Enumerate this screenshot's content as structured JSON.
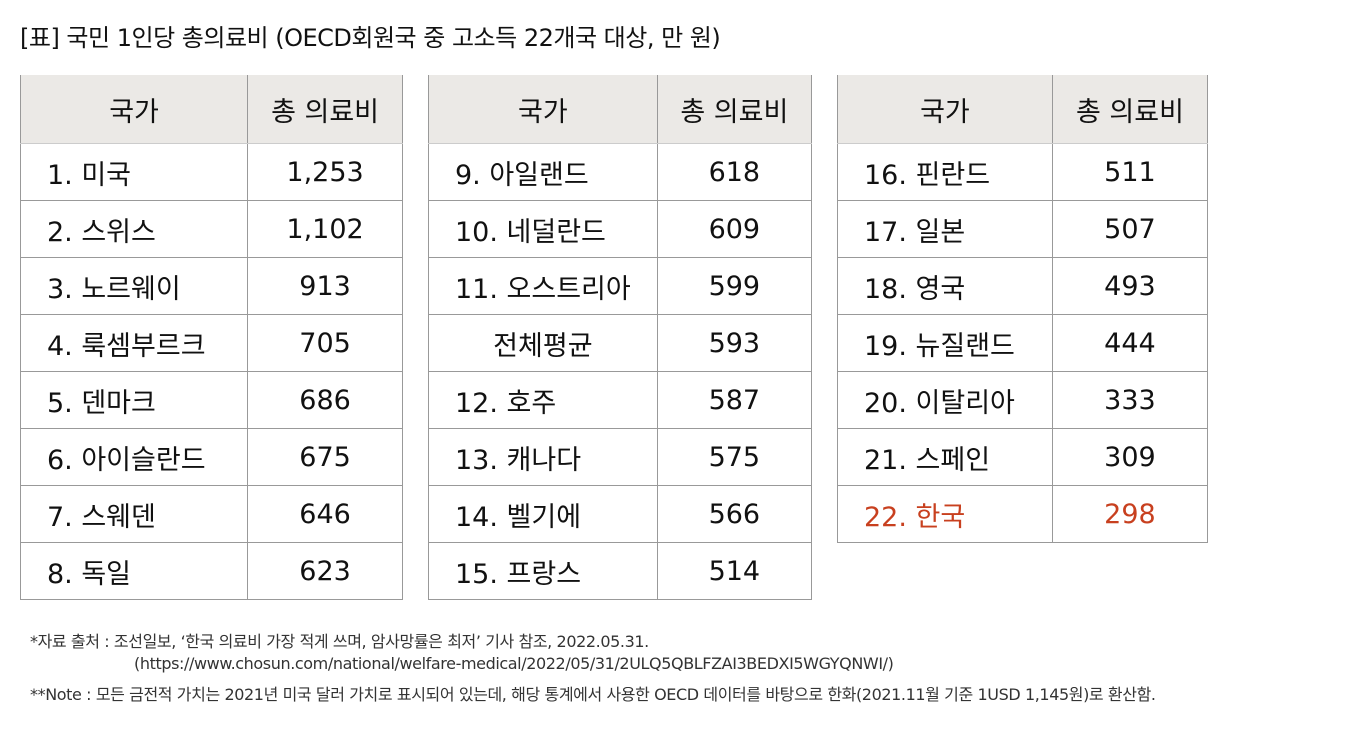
{
  "title": "[표] 국민 1인당 총의료비 (OECD회원국 중 고소득 22개국 대상, 만 원)",
  "headers": [
    "국가",
    "총 의료비"
  ],
  "highlight_color": "#c8401f",
  "tables": [
    [
      [
        "1. 미국",
        "1,253"
      ],
      [
        "2. 스위스",
        "1,102"
      ],
      [
        "3. 노르웨이",
        "913"
      ],
      [
        "4. 룩셈부르크",
        "705"
      ],
      [
        "5. 덴마크",
        "686"
      ],
      [
        "6. 아이슬란드",
        "675"
      ],
      [
        "7. 스웨덴",
        "646"
      ],
      [
        "8. 독일",
        "623"
      ]
    ],
    [
      [
        "9. 아일랜드",
        "618"
      ],
      [
        "10. 네덜란드",
        "609"
      ],
      [
        "11. 오스트리아",
        "599"
      ],
      [
        "전체평균",
        "593"
      ],
      [
        "12. 호주",
        "587"
      ],
      [
        "13. 캐나다",
        "575"
      ],
      [
        "14. 벨기에",
        "566"
      ],
      [
        "15. 프랑스",
        "514"
      ]
    ],
    [
      [
        "16. 핀란드",
        "511"
      ],
      [
        "17. 일본",
        "507"
      ],
      [
        "18. 영국",
        "493"
      ],
      [
        "19. 뉴질랜드",
        "444"
      ],
      [
        "20. 이탈리아",
        "333"
      ],
      [
        "21. 스페인",
        "309"
      ],
      [
        "22. 한국",
        "298"
      ]
    ]
  ],
  "footnotes": {
    "source": "*자료 출처 : 조선일보, ‘한국 의료비 가장 적게 쓰며, 암사망률은 최저’ 기사 참조, 2022.05.31.",
    "url": "(https://www.chosun.com/national/welfare-medical/2022/05/31/2ULQ5QBLFZAI3BEDXI5WGYQNWI/)",
    "note": "**Note : 모든 금전적 가치는 2021년 미국 달러 가치로 표시되어 있는데, 해당 통계에서 사용한 OECD 데이터를 바탕으로 한화(2021.11월 기준 1USD 1,145원)로 환산함."
  }
}
